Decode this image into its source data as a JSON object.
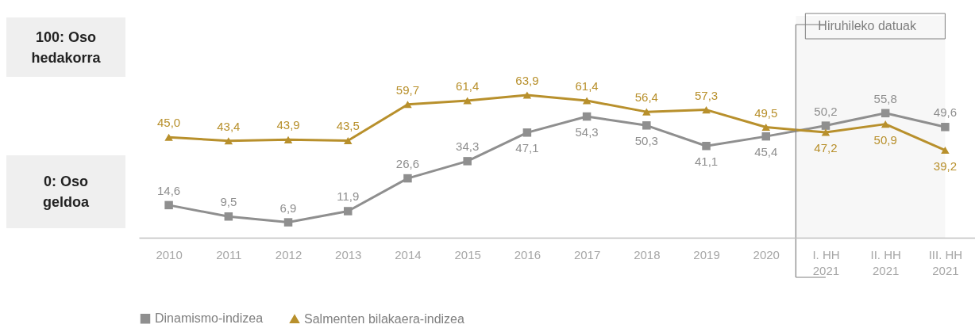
{
  "chart_data": {
    "type": "line",
    "categories": [
      "2010",
      "2011",
      "2012",
      "2013",
      "2014",
      "2015",
      "2016",
      "2017",
      "2018",
      "2019",
      "2020",
      "I. HH\n2021",
      "II. HH\n2021",
      "III. HH\n2021"
    ],
    "series": [
      {
        "name": "Dinamismo-indizea",
        "color": "#8f8f8f",
        "marker": "square",
        "values": [
          14.6,
          9.5,
          6.9,
          11.9,
          26.6,
          34.3,
          47.1,
          54.3,
          50.3,
          41.1,
          45.4,
          50.2,
          55.8,
          49.6
        ],
        "value_labels": [
          "14,6",
          "9,5",
          "6,9",
          "11,9",
          "26,6",
          "34,3",
          "47,1",
          "54,3",
          "50,3",
          "41,1",
          "45,4",
          "50,2",
          "55,8",
          "49,6"
        ]
      },
      {
        "name": "Salmenten bilakaera-indizea",
        "color": "#b8902c",
        "marker": "triangle",
        "values": [
          45.0,
          43.4,
          43.9,
          43.5,
          59.7,
          61.4,
          63.9,
          61.4,
          56.4,
          57.3,
          49.5,
          47.2,
          50.9,
          39.2
        ],
        "value_labels": [
          "45,0",
          "43,4",
          "43,9",
          "43,5",
          "59,7",
          "61,4",
          "63,9",
          "61,4",
          "56,4",
          "57,3",
          "49,5",
          "47,2",
          "50,9",
          "39,2"
        ]
      }
    ],
    "bands": [
      {
        "axis": "x",
        "from": "I. HH\n2021",
        "to": "III. HH\n2021",
        "label": "Hiruhileko datuak",
        "color": "#f7f7f7"
      }
    ],
    "grid": false,
    "legend": "bottom",
    "line_style": "solid",
    "annotations": [
      "100: Oso hedakorra",
      "0: Oso geldoa"
    ]
  }
}
